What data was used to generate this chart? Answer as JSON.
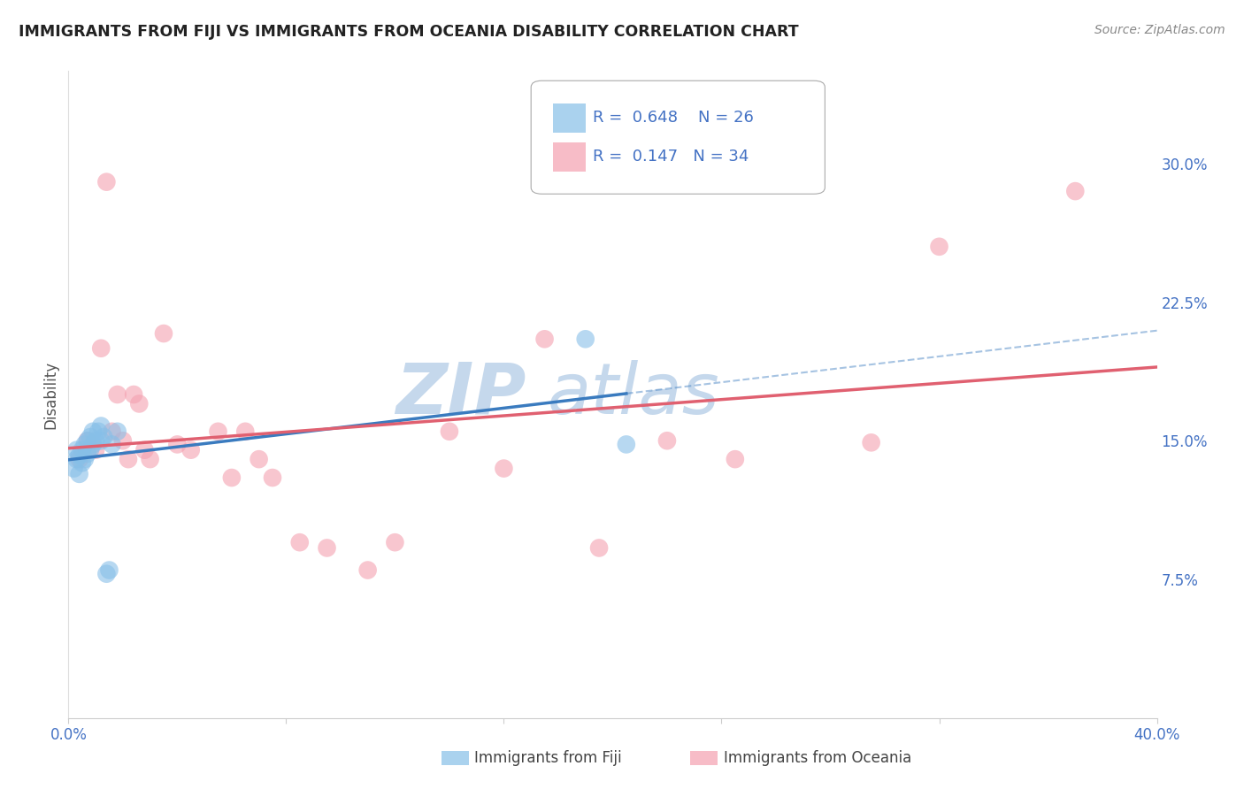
{
  "title": "IMMIGRANTS FROM FIJI VS IMMIGRANTS FROM OCEANIA DISABILITY CORRELATION CHART",
  "source": "Source: ZipAtlas.com",
  "ylabel": "Disability",
  "xlim": [
    0.0,
    0.4
  ],
  "ylim": [
    0.0,
    0.35
  ],
  "ytick_positions": [
    0.075,
    0.15,
    0.225,
    0.3
  ],
  "ytick_labels": [
    "7.5%",
    "15.0%",
    "22.5%",
    "30.0%"
  ],
  "fiji_R": 0.648,
  "fiji_N": 26,
  "oceania_R": 0.147,
  "oceania_N": 34,
  "fiji_color": "#87bfe8",
  "oceania_color": "#f4a0b0",
  "fiji_line_color": "#3a7bbf",
  "oceania_line_color": "#e06070",
  "fiji_scatter_x": [
    0.002,
    0.003,
    0.003,
    0.004,
    0.004,
    0.005,
    0.005,
    0.006,
    0.006,
    0.007,
    0.007,
    0.008,
    0.008,
    0.009,
    0.009,
    0.01,
    0.011,
    0.012,
    0.012,
    0.013,
    0.014,
    0.015,
    0.016,
    0.018,
    0.19,
    0.205
  ],
  "fiji_scatter_y": [
    0.135,
    0.14,
    0.145,
    0.132,
    0.142,
    0.138,
    0.145,
    0.14,
    0.148,
    0.143,
    0.15,
    0.145,
    0.152,
    0.148,
    0.155,
    0.15,
    0.155,
    0.15,
    0.158,
    0.152,
    0.078,
    0.08,
    0.148,
    0.155,
    0.205,
    0.148
  ],
  "oceania_scatter_x": [
    0.004,
    0.007,
    0.01,
    0.012,
    0.014,
    0.016,
    0.018,
    0.02,
    0.022,
    0.024,
    0.026,
    0.028,
    0.03,
    0.035,
    0.04,
    0.045,
    0.055,
    0.06,
    0.065,
    0.07,
    0.075,
    0.085,
    0.095,
    0.11,
    0.12,
    0.14,
    0.16,
    0.175,
    0.195,
    0.22,
    0.245,
    0.295,
    0.32,
    0.37
  ],
  "oceania_scatter_y": [
    0.14,
    0.15,
    0.145,
    0.2,
    0.29,
    0.155,
    0.175,
    0.15,
    0.14,
    0.175,
    0.17,
    0.145,
    0.14,
    0.208,
    0.148,
    0.145,
    0.155,
    0.13,
    0.155,
    0.14,
    0.13,
    0.095,
    0.092,
    0.08,
    0.095,
    0.155,
    0.135,
    0.205,
    0.092,
    0.15,
    0.14,
    0.149,
    0.255,
    0.285
  ],
  "background_color": "#ffffff",
  "watermark_color": "#c5d8ec",
  "watermark_zip": "ZIP",
  "watermark_atlas": "atlas"
}
